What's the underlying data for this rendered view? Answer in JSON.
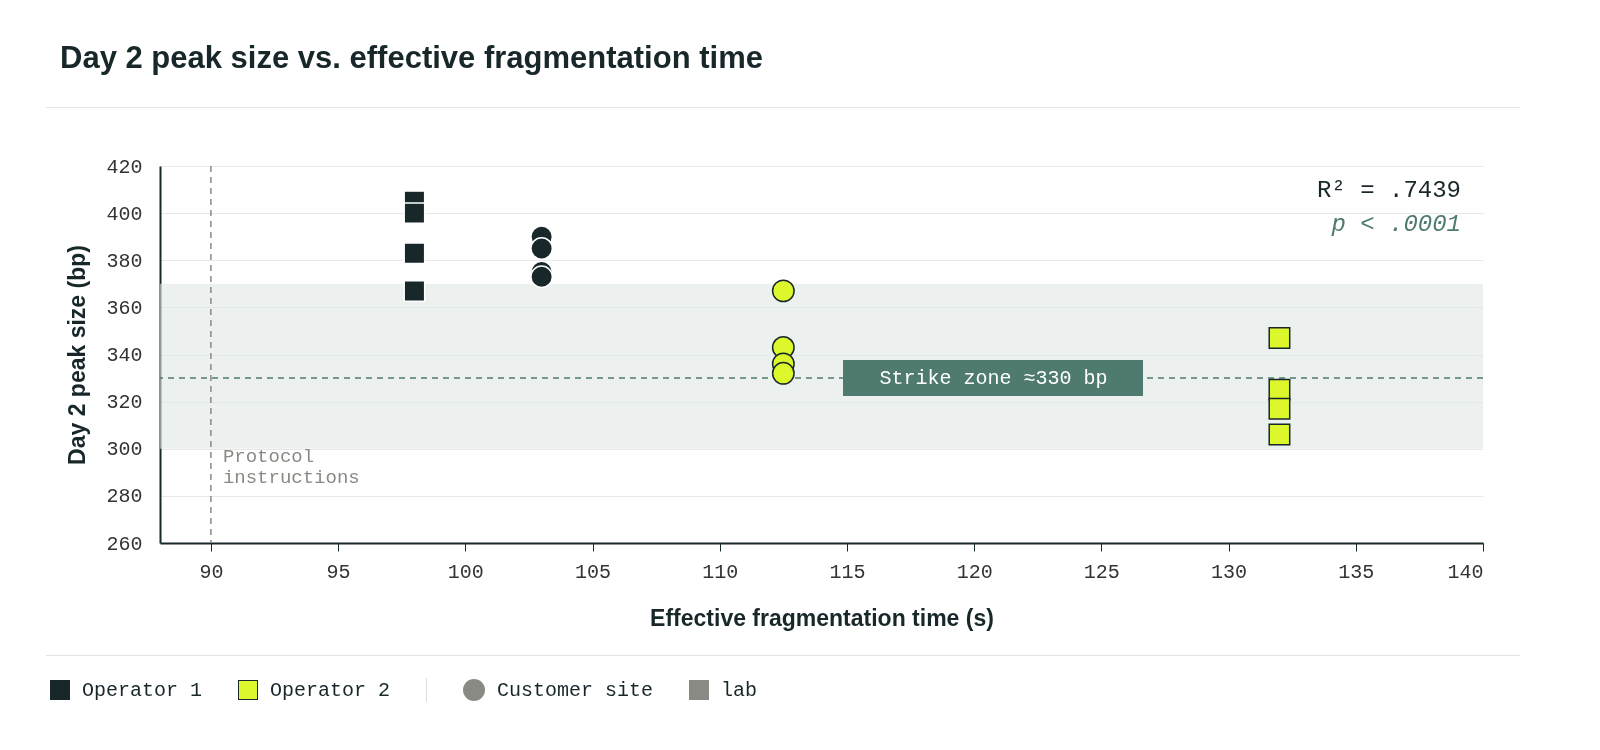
{
  "chart_data": {
    "type": "scatter",
    "title": "Day 2 peak size vs. effective fragmentation time",
    "xlabel": "Effective fragmentation time (s)",
    "ylabel": "Day 2 peak size (bp)",
    "xlim": [
      88,
      140
    ],
    "xticks": [
      90,
      95,
      100,
      105,
      110,
      115,
      120,
      125,
      130,
      135,
      140
    ],
    "ylim": [
      260,
      420
    ],
    "yticks": [
      260,
      280,
      300,
      320,
      340,
      360,
      380,
      400,
      420
    ],
    "grid": "y",
    "legend": "bottom",
    "series": [
      {
        "name": "Operator 1",
        "color": "#18272a",
        "marker": "square",
        "x": [
          98,
          98,
          98,
          98
        ],
        "values": [
          405,
          400,
          383,
          367
        ]
      },
      {
        "color": "#18272a",
        "marker": "circle",
        "x": [
          103,
          103,
          103,
          103
        ],
        "values": [
          390,
          385,
          375,
          373
        ]
      },
      {
        "name": "Operator 2",
        "color": "#dcf72c",
        "marker": "square",
        "x": [
          132,
          132,
          132,
          132
        ],
        "values": [
          347,
          325,
          317,
          306
        ]
      },
      {
        "color": "#dcf72c",
        "marker": "circle",
        "x": [
          112.5,
          112.5,
          112.5,
          112.5
        ],
        "values": [
          367,
          343,
          336,
          332
        ]
      },
      {
        "name": "Customer site",
        "color": "#8a8a85",
        "marker": "circle"
      },
      {
        "name": "lab",
        "color": "#8a8a85",
        "marker": "square"
      }
    ],
    "ref_lines": [
      {
        "axis": "y",
        "value": 330,
        "label": "Strike zone ≈330 bp",
        "color": "#4e7a70",
        "line_style": "dashed"
      },
      {
        "axis": "x",
        "value": 90,
        "label": "Protocol instructions",
        "color": "#8a8a85",
        "line_style": "dashed"
      }
    ],
    "bands": [
      {
        "axis": "y",
        "from": 300,
        "to": 370,
        "color": "#dfe7e4"
      }
    ],
    "annotations": [
      "R² = .7439",
      "p < .0001"
    ]
  }
}
